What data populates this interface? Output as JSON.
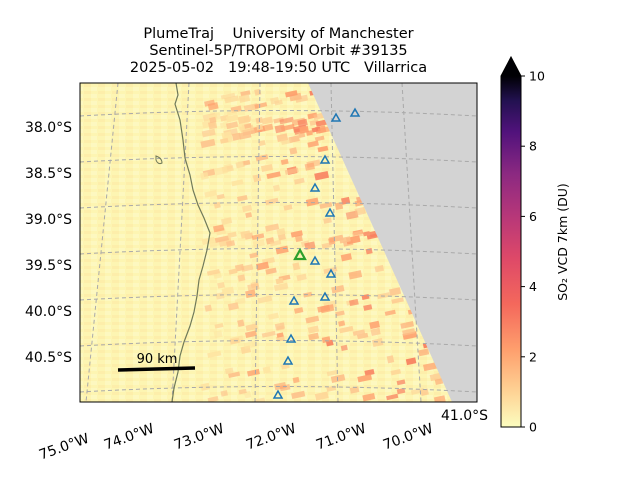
{
  "title": {
    "line1": "PlumeTraj    University of Manchester",
    "line2": "Sentinel-5P/TROPOMI Orbit #39135",
    "line3": "2025-05-02   19:48-19:50 UTC   Villarrica"
  },
  "map": {
    "lat_labels": [
      "38.0°S",
      "38.5°S",
      "39.0°S",
      "39.5°S",
      "40.0°S",
      "40.5°S",
      "41.0°S"
    ],
    "lon_labels": [
      "75.0°W",
      "74.0°W",
      "73.0°W",
      "72.0°W",
      "71.0°W",
      "70.0°W"
    ],
    "scale_bar_label": "90 km",
    "no_data_color": "#d3d3d3",
    "coast_color": "#707a5a",
    "grid": true,
    "volcano_marker_color": "#1f77b4",
    "target_volcano_color": "#2ca02c"
  },
  "colorbar": {
    "label": "SO₂ VCD 7km (DU)",
    "ticks": [
      "0",
      "2",
      "4",
      "6",
      "8",
      "10"
    ],
    "min": 0,
    "max": 10,
    "colormap": "magma_r",
    "extend": "max"
  }
}
